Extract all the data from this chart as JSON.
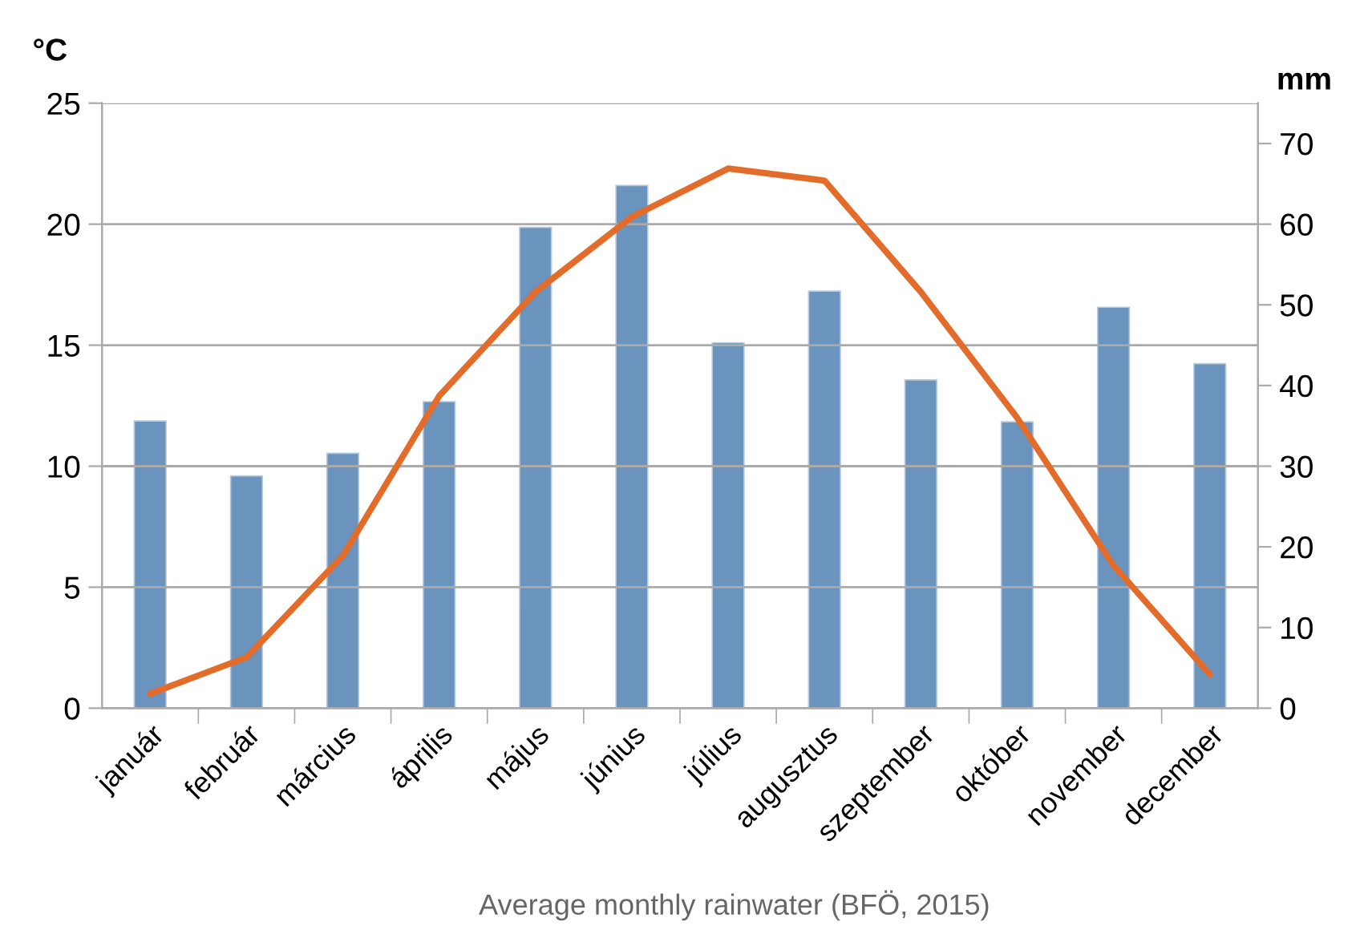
{
  "chart_data": {
    "type": "bar",
    "categories": [
      "január",
      "február",
      "március",
      "április",
      "május",
      "június",
      "július",
      "augusztus",
      "szeptember",
      "október",
      "november",
      "december"
    ],
    "series": [
      {
        "axis": "y2",
        "color": "#6a93bd",
        "values": [
          35.6,
          28.8,
          31.6,
          38.0,
          59.6,
          64.8,
          45.3,
          51.7,
          40.7,
          35.5,
          49.7,
          42.7
        ]
      },
      {
        "type": "line",
        "color": "#e36c2a",
        "marker": "none",
        "line_style": "solid",
        "values": [
          0.6,
          2.1,
          6.3,
          12.9,
          17.2,
          20.3,
          22.3,
          21.8,
          17.2,
          12.0,
          5.9,
          1.4
        ]
      }
    ],
    "ylabel": "°C",
    "y2label": "mm",
    "ylim": [
      0,
      25
    ],
    "yticks": [
      0,
      5,
      10,
      15,
      20,
      25
    ],
    "y2lim": [
      0,
      75
    ],
    "y2ticks": [
      0,
      10,
      20,
      30,
      40,
      50,
      60,
      70
    ],
    "grid": "y",
    "legend": false,
    "annotations": [
      "Average monthly rainwater (BFÖ, 2015)"
    ]
  }
}
